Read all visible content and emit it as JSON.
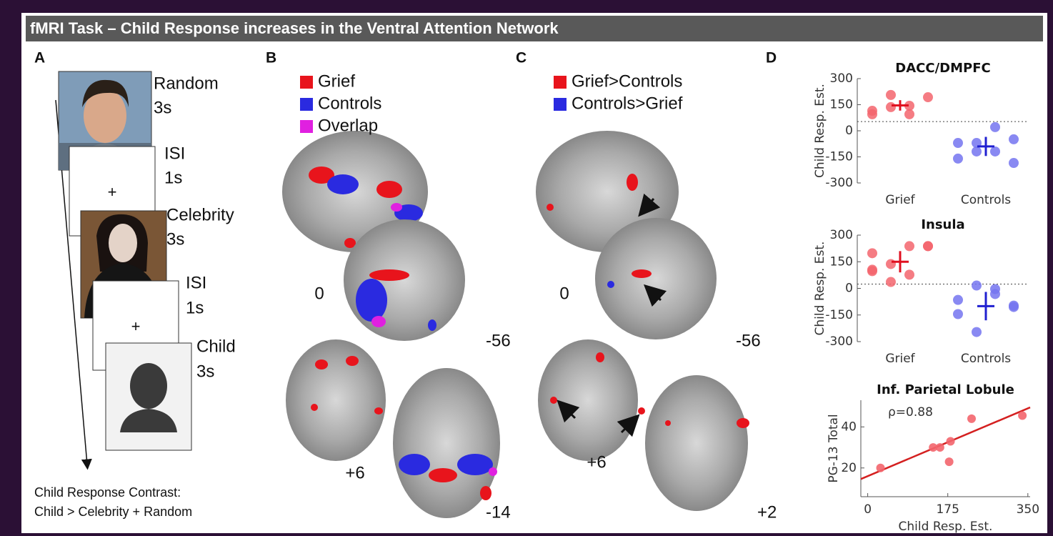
{
  "header": {
    "title": "fMRI Task – Child Response increases in the Ventral Attention Network"
  },
  "panel_labels": [
    "A",
    "B",
    "C",
    "D"
  ],
  "panel_a": {
    "steps": [
      {
        "label": "Random",
        "duration": "3s"
      },
      {
        "label": "ISI",
        "duration": "1s"
      },
      {
        "label": "Celebrity",
        "duration": "3s"
      },
      {
        "label": "ISI",
        "duration": "1s"
      },
      {
        "label": "Child",
        "duration": "3s"
      }
    ],
    "fixation": "+",
    "caption": [
      "Child Response Contrast:",
      "Child > Celebrity + Random"
    ]
  },
  "panel_b": {
    "legend": [
      {
        "label": "Grief",
        "color": "#e8141c"
      },
      {
        "label": "Controls",
        "color": "#2a2ae0"
      },
      {
        "label": "Overlap",
        "color": "#e020e0"
      }
    ],
    "slices": [
      "0",
      "-56",
      "+6",
      "-14"
    ]
  },
  "panel_c": {
    "legend": [
      {
        "label": "Grief>Controls",
        "color": "#e8141c"
      },
      {
        "label": "Controls>Grief",
        "color": "#2a2ae0"
      }
    ],
    "slices": [
      "0",
      "-56",
      "+6",
      "+2"
    ]
  },
  "chart_data": [
    {
      "type": "strip",
      "title": "DACC/DMPFC",
      "y_label": "Child Resp. Est.",
      "categories": [
        "Grief",
        "Controls"
      ],
      "series": [
        {
          "color": "#f3656d",
          "mean_color": "#e01020",
          "values": [
            115,
            206,
            144,
            193,
            95,
            136,
            95
          ]
        },
        {
          "color": "#7474f0",
          "mean_color": "#2020d0",
          "values": [
            -70,
            -119,
            21,
            -49,
            -160,
            -70,
            -119,
            -185
          ]
        }
      ],
      "means": [
        146,
        -90
      ],
      "errors": [
        30,
        55
      ],
      "reference_line": 53,
      "ylim": [
        -300,
        300
      ],
      "yticks": [
        300,
        150,
        0,
        -150,
        -300
      ]
    },
    {
      "type": "strip",
      "title": "Insula",
      "y_label": "Child Resp. Est.",
      "categories": [
        "Grief",
        "Controls"
      ],
      "series": [
        {
          "color": "#f3656d",
          "mean_color": "#e01020",
          "values": [
            198,
            137,
            77,
            238,
            97,
            36,
            238,
            238,
            105
          ]
        },
        {
          "color": "#7474f0",
          "mean_color": "#2020d0",
          "values": [
            -65,
            16,
            -32,
            -97,
            -145,
            -246,
            -4,
            -105
          ]
        }
      ],
      "means": [
        150,
        -100
      ],
      "errors": [
        60,
        80
      ],
      "reference_line": 24,
      "ylim": [
        -300,
        300
      ],
      "yticks": [
        300,
        150,
        0,
        -150,
        -300
      ]
    },
    {
      "type": "scatter",
      "title": "Inf. Parietal Lobule",
      "x_label": "Child Resp. Est.",
      "y_label": "PG-13 Total",
      "annotation": "ρ=0.88",
      "x": [
        28,
        143,
        158,
        181,
        178,
        227,
        338
      ],
      "values": [
        20,
        30,
        30,
        33,
        23,
        44,
        45.5
      ],
      "color": "#f3656d",
      "fit": {
        "x": [
          -15,
          355
        ],
        "values": [
          14.6,
          49.5
        ],
        "color": "#d42020"
      },
      "xlim": [
        -15,
        355
      ],
      "xticks": [
        0,
        175,
        350
      ],
      "ylim": [
        6,
        53
      ],
      "yticks": [
        20,
        40
      ]
    }
  ]
}
